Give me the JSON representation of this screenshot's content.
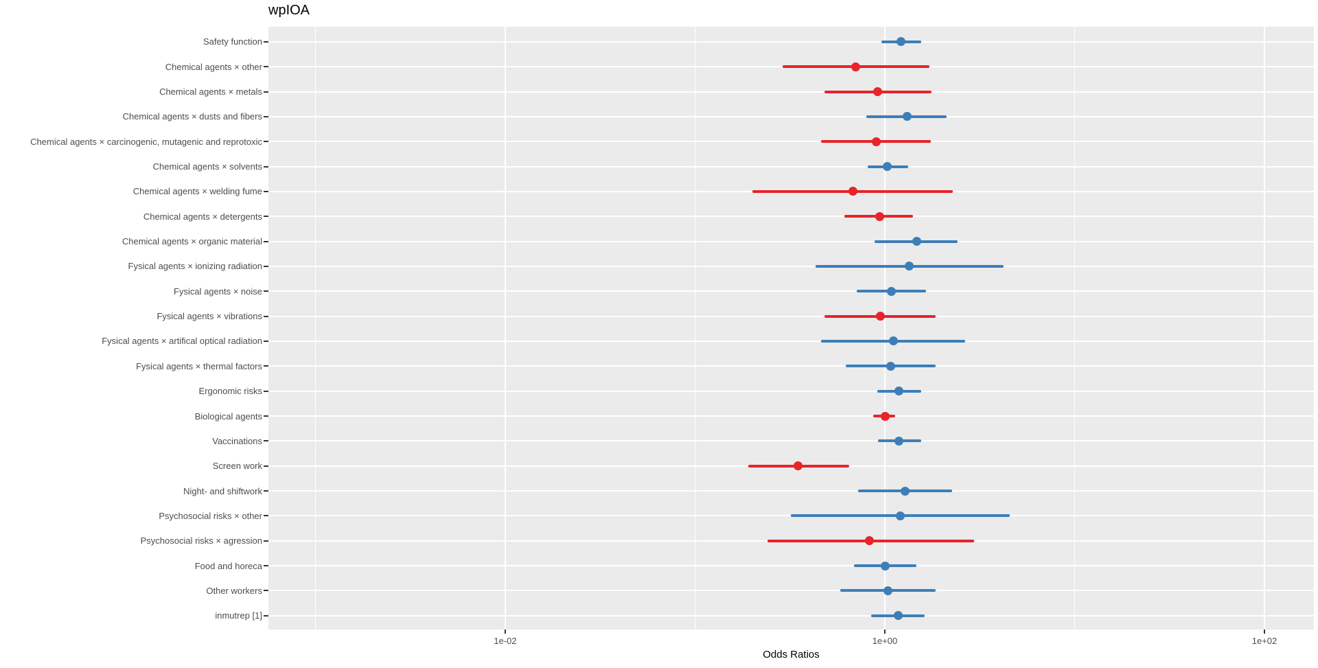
{
  "chart_data": {
    "type": "scatter",
    "subtype": "forest-plot-odds-ratios",
    "title": "wpIOA",
    "xlabel": "Odds Ratios",
    "x_scale": "log10",
    "xlim": [
      0.00057,
      180
    ],
    "grid": true,
    "legend_position": "none",
    "panel_background": "#EBEBEB",
    "gridline_color": "#FFFFFF",
    "axis_text_color": "#4D4D4D",
    "point_colors": {
      "blue": "#3D7DB8",
      "red": "#E6242A"
    },
    "x_ticks": [
      {
        "label": "1e-02",
        "value": 0.01
      },
      {
        "label": "1e+00",
        "value": 1
      },
      {
        "label": "1e+02",
        "value": 100
      }
    ],
    "x_minor_breaks": [
      0.001,
      0.1,
      10
    ],
    "categories": [
      "Safety function",
      "Chemical agents × other",
      "Chemical agents × metals",
      "Chemical agents × dusts and fibers",
      "Chemical agents × carcinogenic, mutagenic and reprotoxic",
      "Chemical agents × solvents",
      "Chemical agents × welding fume",
      "Chemical agents × detergents",
      "Chemical agents × organic material",
      "Fysical agents × ionizing radiation",
      "Fysical agents × noise",
      "Fysical agents × vibrations",
      "Fysical agents × artifical optical radiation",
      "Fysical agents × thermal factors",
      "Ergonomic risks",
      "Biological agents",
      "Vaccinations",
      "Screen work",
      "Night- and shiftwork",
      "Psychosocial risks × other",
      "Psychosocial risks × agression",
      "Food and horeca",
      "Other workers",
      "inmutrep [1]"
    ],
    "points": [
      {
        "label": "Safety function",
        "or": 1.22,
        "ci_low": 0.96,
        "ci_high": 1.56,
        "color": "blue"
      },
      {
        "label": "Chemical agents × other",
        "or": 0.7,
        "ci_low": 0.29,
        "ci_high": 1.72,
        "color": "red"
      },
      {
        "label": "Chemical agents × metals",
        "or": 0.92,
        "ci_low": 0.48,
        "ci_high": 1.76,
        "color": "red"
      },
      {
        "label": "Chemical agents × dusts and fibers",
        "or": 1.31,
        "ci_low": 0.8,
        "ci_high": 2.12,
        "color": "blue"
      },
      {
        "label": "Chemical agents × carcinogenic, mutagenic and reprotoxic",
        "or": 0.9,
        "ci_low": 0.46,
        "ci_high": 1.75,
        "color": "red"
      },
      {
        "label": "Chemical agents × solvents",
        "or": 1.03,
        "ci_low": 0.81,
        "ci_high": 1.33,
        "color": "blue"
      },
      {
        "label": "Chemical agents × welding fume",
        "or": 0.68,
        "ci_low": 0.2,
        "ci_high": 2.28,
        "color": "red"
      },
      {
        "label": "Chemical agents × detergents",
        "or": 0.94,
        "ci_low": 0.61,
        "ci_high": 1.41,
        "color": "red"
      },
      {
        "label": "Chemical agents × organic material",
        "or": 1.47,
        "ci_low": 0.88,
        "ci_high": 2.42,
        "color": "blue"
      },
      {
        "label": "Fysical agents × ionizing radiation",
        "or": 1.34,
        "ci_low": 0.43,
        "ci_high": 4.22,
        "color": "blue"
      },
      {
        "label": "Fysical agents × noise",
        "or": 1.08,
        "ci_low": 0.71,
        "ci_high": 1.65,
        "color": "blue"
      },
      {
        "label": "Fysical agents × vibrations",
        "or": 0.95,
        "ci_low": 0.48,
        "ci_high": 1.85,
        "color": "red"
      },
      {
        "label": "Fysical agents × artifical optical radiation",
        "or": 1.11,
        "ci_low": 0.46,
        "ci_high": 2.65,
        "color": "blue"
      },
      {
        "label": "Fysical agents × thermal factors",
        "or": 1.07,
        "ci_low": 0.62,
        "ci_high": 1.85,
        "color": "blue"
      },
      {
        "label": "Ergonomic risks",
        "or": 1.19,
        "ci_low": 0.91,
        "ci_high": 1.56,
        "color": "blue"
      },
      {
        "label": "Biological agents",
        "or": 1.0,
        "ci_low": 0.87,
        "ci_high": 1.13,
        "color": "red"
      },
      {
        "label": "Vaccinations",
        "or": 1.19,
        "ci_low": 0.92,
        "ci_high": 1.55,
        "color": "blue"
      },
      {
        "label": "Screen work",
        "or": 0.35,
        "ci_low": 0.19,
        "ci_high": 0.65,
        "color": "red"
      },
      {
        "label": "Night- and shiftwork",
        "or": 1.28,
        "ci_low": 0.72,
        "ci_high": 2.26,
        "color": "blue"
      },
      {
        "label": "Psychosocial risks × other",
        "or": 1.21,
        "ci_low": 0.32,
        "ci_high": 4.54,
        "color": "blue"
      },
      {
        "label": "Psychosocial risks × agression",
        "or": 0.83,
        "ci_low": 0.24,
        "ci_high": 2.95,
        "color": "red"
      },
      {
        "label": "Food and horeca",
        "or": 1.0,
        "ci_low": 0.69,
        "ci_high": 1.47,
        "color": "blue"
      },
      {
        "label": "Other workers",
        "or": 1.04,
        "ci_low": 0.58,
        "ci_high": 1.85,
        "color": "blue"
      },
      {
        "label": "inmutrep [1]",
        "or": 1.18,
        "ci_low": 0.85,
        "ci_high": 1.62,
        "color": "blue"
      }
    ]
  }
}
